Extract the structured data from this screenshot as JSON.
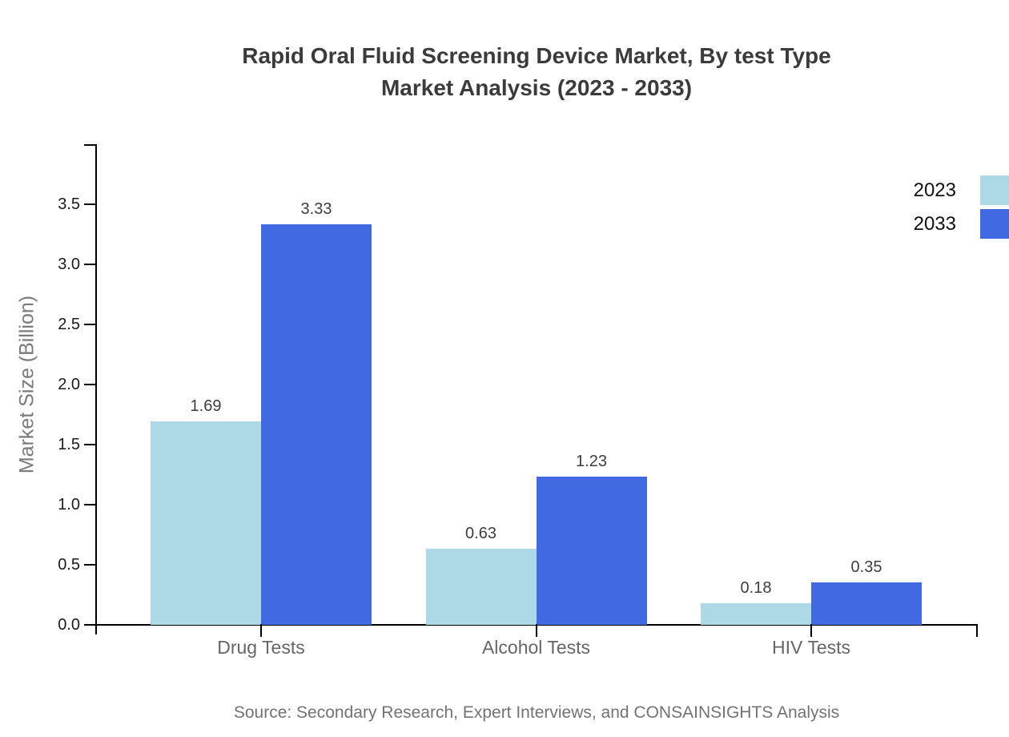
{
  "chart_data": {
    "type": "bar",
    "title_line1": "Rapid Oral Fluid Screening Device Market, By test Type",
    "title_line2": "Market Analysis (2023 - 2033)",
    "ylabel": "Market Size (Billion)",
    "categories": [
      "Drug Tests",
      "Alcohol Tests",
      "HIV Tests"
    ],
    "series": [
      {
        "name": "2023",
        "color": "#ADD8E6",
        "values": [
          1.69,
          0.63,
          0.18
        ]
      },
      {
        "name": "2033",
        "color": "#4169E1",
        "values": [
          3.33,
          1.23,
          0.35
        ]
      }
    ],
    "yticks": [
      0.0,
      0.5,
      1.0,
      1.5,
      2.0,
      2.5,
      3.0,
      3.5
    ],
    "ytick_labels": [
      "0.0",
      "0.5",
      "1.0",
      "1.5",
      "2.0",
      "2.5",
      "3.0",
      "3.5"
    ],
    "ylim": [
      0,
      4
    ],
    "grid": false,
    "legend_position": "top-right",
    "value_labels_shown": true,
    "source": "Source: Secondary Research, Expert Interviews, and CONSAINSIGHTS Analysis",
    "colors": {
      "axis": "#000000",
      "title_text": "#3B3B3B",
      "tick_text": "#1A1A1A",
      "value_text": "#3D3D3D",
      "category_text": "#666666",
      "ylabel_text": "#7A7A7A",
      "source_text": "#737373",
      "background": "#FFFFFF"
    }
  }
}
